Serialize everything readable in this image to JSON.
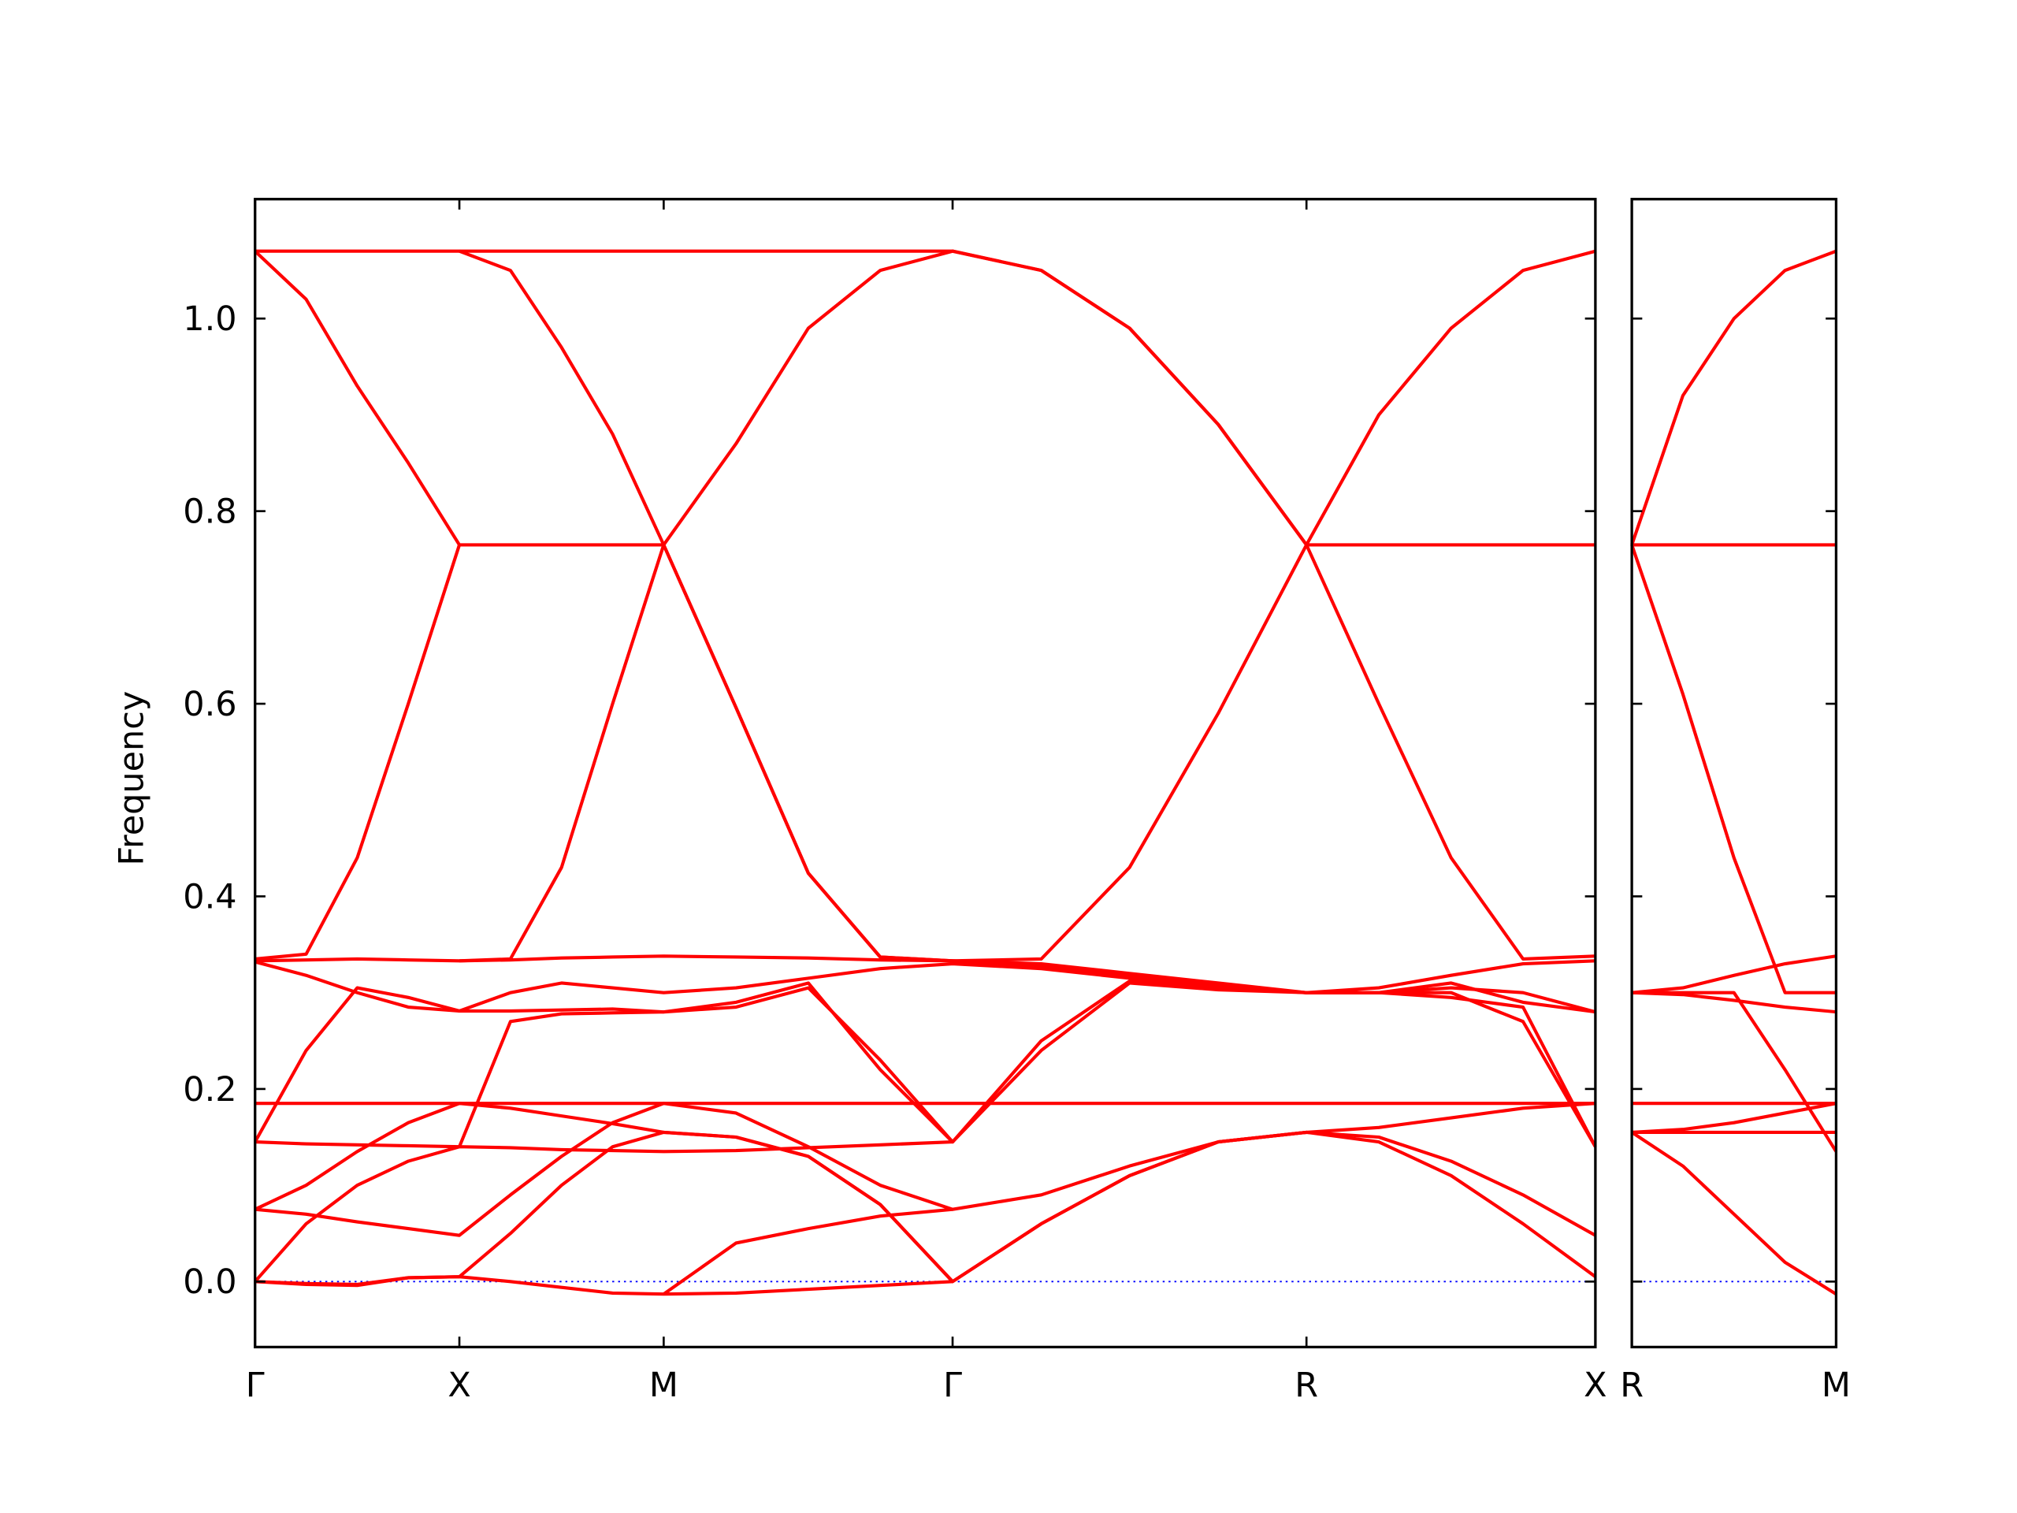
{
  "chart_data": [
    {
      "type": "line",
      "ylabel": "Frequency",
      "color": "#ff0000",
      "xlim": [
        0,
        3.28
      ],
      "ylim": [
        -0.068,
        1.124
      ],
      "xticks": [
        {
          "value": 0,
          "label": "Γ"
        },
        {
          "value": 0.5,
          "label": "X"
        },
        {
          "value": 1.0,
          "label": "M"
        },
        {
          "value": 1.707,
          "label": "Γ"
        },
        {
          "value": 2.573,
          "label": "R"
        },
        {
          "value": 3.28,
          "label": "X"
        }
      ],
      "yticks": [
        {
          "value": 0,
          "label": "0.0"
        },
        {
          "value": 0.2,
          "label": "0.2"
        },
        {
          "value": 0.4,
          "label": "0.4"
        },
        {
          "value": 0.6,
          "label": "0.6"
        },
        {
          "value": 0.8,
          "label": "0.8"
        },
        {
          "value": 1.0,
          "label": "1.0"
        }
      ],
      "zero_line": {
        "value": 0,
        "color": "#0000ff"
      },
      "x": [
        0,
        0.125,
        0.25,
        0.375,
        0.5,
        0.625,
        0.75,
        0.875,
        1.0,
        1.177,
        1.354,
        1.53,
        1.707,
        1.924,
        2.14,
        2.357,
        2.573,
        2.75,
        2.927,
        3.103,
        3.28
      ],
      "series": [
        {
          "values": [
            1.07,
            1.07,
            1.07,
            1.07,
            1.07,
            1.07,
            1.07,
            1.07,
            1.07,
            1.07,
            1.07,
            1.07,
            1.07,
            1.05,
            0.99,
            0.89,
            0.765,
            0.9,
            0.99,
            1.05,
            1.07
          ]
        },
        {
          "values": [
            null,
            null,
            null,
            null,
            1.07,
            1.05,
            0.97,
            0.88,
            0.765,
            0.596,
            0.424,
            0.337,
            0.333,
            0.335,
            0.43,
            0.59,
            0.765,
            0.6,
            0.44,
            0.335,
            0.338
          ]
        },
        {
          "values": [
            1.07,
            1.02,
            0.93,
            0.85,
            0.765,
            0.765,
            0.765,
            0.765,
            0.765,
            0.87,
            0.99,
            1.05,
            1.07,
            1.05,
            0.99,
            0.89,
            0.765,
            0.765,
            0.765,
            0.765,
            0.765
          ]
        },
        {
          "values": [
            0.335,
            0.34,
            0.44,
            0.6,
            0.765,
            null,
            null,
            null,
            null,
            null,
            null,
            null,
            null,
            null,
            null,
            null,
            null,
            null,
            null,
            null,
            null
          ]
        },
        {
          "values": [
            0.333,
            0.334,
            0.335,
            0.334,
            0.333,
            0.335,
            0.43,
            0.6,
            0.765,
            0.596,
            0.424,
            0.337,
            0.333,
            0.328,
            0.318,
            0.308,
            0.3,
            0.305,
            0.318,
            0.33,
            0.333
          ]
        },
        {
          "values": [
            0.332,
            0.318,
            0.3,
            0.285,
            0.281,
            0.3,
            0.31,
            0.305,
            0.3,
            0.305,
            0.315,
            0.325,
            0.33,
            0.325,
            0.315,
            0.305,
            0.3,
            0.3,
            0.305,
            0.3,
            0.28
          ]
        },
        {
          "values": [
            null,
            null,
            null,
            null,
            0.333,
            0.334,
            0.336,
            0.337,
            0.338,
            0.337,
            0.336,
            0.334,
            0.333,
            0.33,
            0.32,
            0.31,
            0.3,
            0.3,
            0.295,
            0.285,
            0.14
          ]
        },
        {
          "values": [
            0.145,
            0.24,
            0.305,
            0.295,
            0.281,
            0.281,
            0.282,
            0.283,
            0.28,
            0.29,
            0.31,
            0.22,
            0.145,
            0.25,
            0.312,
            0.305,
            0.3,
            0.3,
            0.31,
            0.29,
            0.28
          ]
        },
        {
          "values": [
            0.145,
            0.143,
            0.142,
            0.141,
            0.14,
            0.27,
            0.278,
            0.279,
            0.28,
            0.285,
            0.305,
            0.23,
            0.145,
            0.24,
            0.31,
            0.303,
            0.3,
            0.3,
            0.3,
            0.27,
            0.14
          ]
        },
        {
          "values": [
            0.185,
            0.185,
            0.185,
            0.185,
            0.185,
            0.185,
            0.185,
            0.185,
            0.185,
            0.185,
            0.185,
            0.185,
            0.185,
            0.185,
            0.185,
            0.185,
            0.185,
            0.185,
            0.185,
            0.185,
            0.185
          ]
        },
        {
          "values": [
            0.075,
            0.1,
            0.135,
            0.165,
            0.185,
            0.18,
            0.172,
            0.164,
            0.155,
            0.15,
            0.13,
            0.08,
            0,
            0.06,
            0.11,
            0.145,
            0.155,
            0.145,
            0.11,
            0.06,
            0.005
          ]
        },
        {
          "values": [
            0,
            0.06,
            0.1,
            0.125,
            0.14,
            0.139,
            0.137,
            0.136,
            0.135,
            0.136,
            0.139,
            0.142,
            0.145,
            null,
            null,
            null,
            null,
            null,
            null,
            null,
            null
          ]
        },
        {
          "values": [
            0.075,
            0.07,
            0.062,
            0.055,
            0.048,
            0.09,
            0.13,
            0.165,
            0.185,
            0.175,
            0.14,
            0.1,
            0.075,
            0.09,
            0.12,
            0.145,
            0.155,
            0.15,
            0.125,
            0.09,
            0.048
          ]
        },
        {
          "values": [
            0,
            -0.003,
            -0.004,
            0.004,
            0.005,
            0.05,
            0.1,
            0.14,
            0.155,
            0.15,
            0.13,
            0.08,
            0,
            0.06,
            0.11,
            0.145,
            0.155,
            0.16,
            0.17,
            0.18,
            0.185
          ]
        },
        {
          "values": [
            0,
            -0.002,
            -0.003,
            0.004,
            0.005,
            0,
            -0.006,
            -0.012,
            -0.013,
            -0.012,
            -0.008,
            -0.004,
            0,
            null,
            null,
            null,
            null,
            null,
            null,
            null,
            null
          ]
        },
        {
          "values": [
            null,
            null,
            null,
            null,
            null,
            null,
            null,
            null,
            -0.013,
            0.04,
            0.055,
            0.068,
            0.075,
            null,
            null,
            null,
            null,
            null,
            null,
            null,
            null
          ]
        }
      ]
    },
    {
      "type": "line",
      "color": "#ff0000",
      "xlim": [
        0,
        0.5
      ],
      "ylim": [
        -0.068,
        1.124
      ],
      "xticks": [
        {
          "value": 0,
          "label": "R"
        },
        {
          "value": 0.5,
          "label": "M"
        }
      ],
      "yticks": [
        0,
        0.2,
        0.4,
        0.6,
        0.8,
        1.0
      ],
      "zero_line": {
        "value": 0,
        "color": "#0000ff"
      },
      "x": [
        0,
        0.125,
        0.25,
        0.375,
        0.5
      ],
      "series": [
        {
          "values": [
            0.765,
            0.92,
            1.0,
            1.05,
            1.07
          ]
        },
        {
          "values": [
            0.765,
            0.765,
            0.765,
            0.765,
            0.765
          ]
        },
        {
          "values": [
            0.765,
            0.61,
            0.44,
            0.3,
            0.3
          ]
        },
        {
          "values": [
            0.3,
            0.305,
            0.318,
            0.33,
            0.338
          ]
        },
        {
          "values": [
            0.3,
            0.298,
            0.292,
            0.285,
            0.28
          ]
        },
        {
          "values": [
            0.3,
            0.3,
            0.3,
            0.22,
            0.135
          ]
        },
        {
          "values": [
            0.185,
            0.185,
            0.185,
            0.185,
            0.185
          ]
        },
        {
          "values": [
            0.155,
            0.158,
            0.165,
            0.175,
            0.185
          ]
        },
        {
          "values": [
            0.155,
            0.155,
            0.155,
            0.155,
            0.155
          ]
        },
        {
          "values": [
            0.155,
            0.12,
            0.07,
            0.02,
            -0.013
          ]
        }
      ]
    }
  ]
}
